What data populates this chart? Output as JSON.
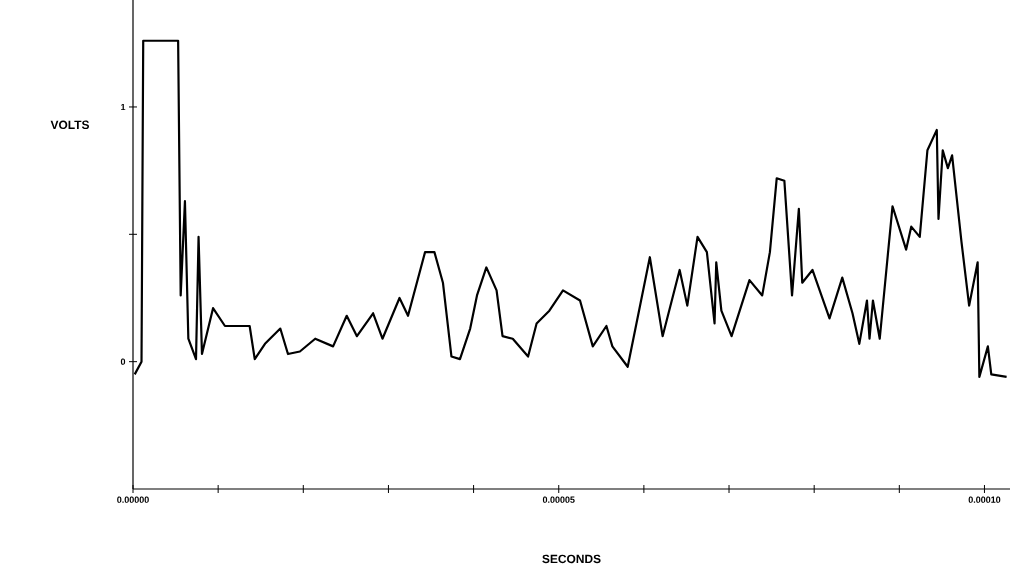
{
  "chart_data": {
    "type": "line",
    "xlabel": "SECONDS",
    "ylabel": "VOLTS",
    "xlim": [
      0,
      0.000103
    ],
    "ylim": [
      -0.5,
      1.42
    ],
    "xticks": [
      {
        "value": 0,
        "label": "0.00000"
      },
      {
        "value": 1e-05,
        "label": null
      },
      {
        "value": 2e-05,
        "label": null
      },
      {
        "value": 3e-05,
        "label": null
      },
      {
        "value": 4e-05,
        "label": null
      },
      {
        "value": 5e-05,
        "label": "0.00005"
      },
      {
        "value": 6e-05,
        "label": null
      },
      {
        "value": 7e-05,
        "label": null
      },
      {
        "value": 8e-05,
        "label": null
      },
      {
        "value": 9e-05,
        "label": null
      },
      {
        "value": 0.0001,
        "label": "0.00010"
      }
    ],
    "yticks": [
      {
        "value": 0,
        "label": "0"
      },
      {
        "value": 0.5,
        "label": null
      },
      {
        "value": 1,
        "label": "1"
      }
    ],
    "grid": false,
    "marker": "none",
    "line_style": "solid",
    "series": [
      {
        "color": "#000000",
        "x": [
          2e-07,
          1e-06,
          1.2e-06,
          5.3e-06,
          5.6e-06,
          6.1e-06,
          6.5e-06,
          7.4e-06,
          7.7e-06,
          8.1e-06,
          9.4e-06,
          1.08e-05,
          1.37e-05,
          1.43e-05,
          1.55e-05,
          1.73e-05,
          1.82e-05,
          1.96e-05,
          2.14e-05,
          2.35e-05,
          2.51e-05,
          2.63e-05,
          2.82e-05,
          2.93e-05,
          3.13e-05,
          3.23e-05,
          3.31e-05,
          3.43e-05,
          3.54e-05,
          3.64e-05,
          3.74e-05,
          3.84e-05,
          3.96e-05,
          4.04e-05,
          4.15e-05,
          4.27e-05,
          4.34e-05,
          4.46e-05,
          4.64e-05,
          4.74e-05,
          4.89e-05,
          5.05e-05,
          5.25e-05,
          5.4e-05,
          5.56e-05,
          5.63e-05,
          5.81e-05,
          6.07e-05,
          6.22e-05,
          6.42e-05,
          6.51e-05,
          6.63e-05,
          6.74e-05,
          6.83e-05,
          6.85e-05,
          6.91e-05,
          7.03e-05,
          7.24e-05,
          7.39e-05,
          7.48e-05,
          7.56e-05,
          7.65e-05,
          7.74e-05,
          7.82e-05,
          7.86e-05,
          7.98e-05,
          8.18e-05,
          8.33e-05,
          8.45e-05,
          8.53e-05,
          8.62e-05,
          8.65e-05,
          8.69e-05,
          8.77e-05,
          8.92e-05,
          9.08e-05,
          9.14e-05,
          9.24e-05,
          9.33e-05,
          9.44e-05,
          9.46e-05,
          9.51e-05,
          9.57e-05,
          9.62e-05,
          9.73e-05,
          9.82e-05,
          9.92e-05,
          9.94e-05,
          0.0001004,
          0.0001008,
          0.0001026
        ],
        "values": [
          -0.05,
          0.0,
          1.26,
          1.26,
          0.26,
          0.63,
          0.09,
          0.01,
          0.49,
          0.03,
          0.21,
          0.14,
          0.14,
          0.01,
          0.07,
          0.13,
          0.03,
          0.04,
          0.09,
          0.06,
          0.18,
          0.1,
          0.19,
          0.09,
          0.25,
          0.18,
          0.28,
          0.43,
          0.43,
          0.31,
          0.02,
          0.01,
          0.13,
          0.26,
          0.37,
          0.28,
          0.1,
          0.09,
          0.02,
          0.15,
          0.2,
          0.28,
          0.24,
          0.06,
          0.14,
          0.06,
          -0.02,
          0.41,
          0.1,
          0.36,
          0.22,
          0.49,
          0.43,
          0.15,
          0.39,
          0.2,
          0.1,
          0.32,
          0.26,
          0.43,
          0.72,
          0.71,
          0.26,
          0.6,
          0.31,
          0.36,
          0.17,
          0.33,
          0.19,
          0.07,
          0.24,
          0.09,
          0.24,
          0.09,
          0.61,
          0.44,
          0.53,
          0.49,
          0.83,
          0.91,
          0.56,
          0.83,
          0.76,
          0.81,
          0.47,
          0.22,
          0.39,
          -0.06,
          0.06,
          -0.05,
          -0.06
        ]
      }
    ]
  }
}
